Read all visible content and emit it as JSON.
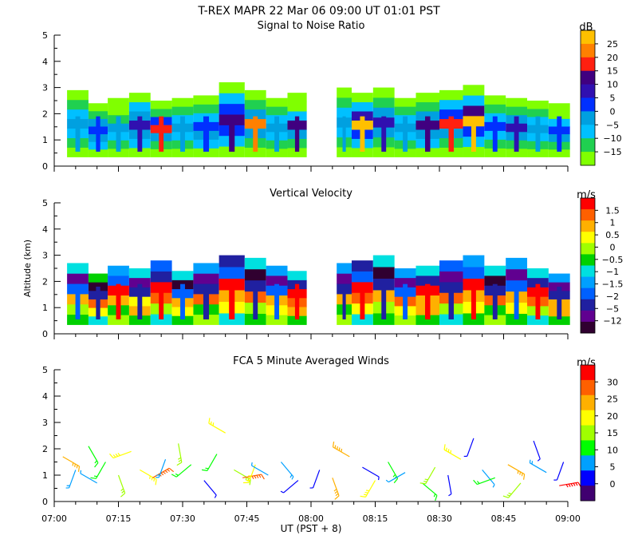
{
  "header": {
    "title": "T-REX   MAPR 22 Mar 06   09:00 UT   01:01   PST"
  },
  "colors": {
    "snr": [
      "#80ff00",
      "#20d050",
      "#00c0ff",
      "#00a0e0",
      "#0030ff",
      "#3010b0",
      "#400080",
      "#ff2010",
      "#ff8000",
      "#ffc000"
    ],
    "vel": [
      "#300030",
      "#600090",
      "#2020a0",
      "#0060ff",
      "#00a0ff",
      "#00e0e0",
      "#00d000",
      "#a0ff00",
      "#ffff00",
      "#ffb000",
      "#ff6000",
      "#ff0000"
    ],
    "wind": [
      "#400070",
      "#0000ff",
      "#00a0ff",
      "#00ff00",
      "#a0ff00",
      "#ffff00",
      "#ffb000",
      "#ff6000",
      "#ff0000"
    ]
  },
  "chart_data": [
    {
      "type": "heatmap",
      "id": "snr",
      "title": "Signal to Noise Ratio",
      "units": "dB",
      "ylabel": "",
      "ylim": [
        0,
        5
      ],
      "yticks": [
        "0",
        "1",
        "2",
        "3",
        "4",
        "5"
      ],
      "colorbar_labels": [
        "25",
        "20",
        "15",
        "10",
        "5",
        "0",
        "−5",
        "−10",
        "−15"
      ],
      "data_gap": [
        "07:59",
        "08:06"
      ],
      "profiles": [
        {
          "t": "07:06",
          "top": 2.9,
          "levels": [
            0,
            1,
            2,
            3,
            2,
            1,
            0
          ]
        },
        {
          "t": "07:10",
          "top": 2.4,
          "levels": [
            0,
            2,
            3,
            4,
            3,
            1,
            0
          ]
        },
        {
          "t": "07:15",
          "top": 2.6,
          "levels": [
            0,
            1,
            2,
            3,
            1,
            0,
            0
          ]
        },
        {
          "t": "07:20",
          "top": 2.8,
          "levels": [
            0,
            2,
            3,
            5,
            3,
            2,
            0
          ]
        },
        {
          "t": "07:25",
          "top": 2.5,
          "levels": [
            0,
            1,
            3,
            7,
            4,
            1,
            0
          ]
        },
        {
          "t": "07:30",
          "top": 2.6,
          "levels": [
            0,
            1,
            2,
            3,
            2,
            1,
            0
          ]
        },
        {
          "t": "07:35",
          "top": 2.7,
          "levels": [
            0,
            2,
            3,
            4,
            2,
            1,
            0
          ]
        },
        {
          "t": "07:42",
          "top": 3.2,
          "levels": [
            0,
            2,
            4,
            6,
            4,
            2,
            0
          ]
        },
        {
          "t": "07:47",
          "top": 2.9,
          "levels": [
            0,
            1,
            3,
            8,
            3,
            1,
            0
          ]
        },
        {
          "t": "07:52",
          "top": 2.6,
          "levels": [
            0,
            1,
            2,
            3,
            2,
            1,
            0
          ]
        },
        {
          "t": "07:57",
          "top": 2.8,
          "levels": [
            0,
            1,
            3,
            6,
            2,
            0,
            0
          ]
        },
        {
          "t": "08:07",
          "top": 3.0,
          "levels": [
            0,
            1,
            2,
            3,
            2,
            1,
            0
          ]
        },
        {
          "t": "08:12",
          "top": 2.8,
          "levels": [
            0,
            2,
            4,
            9,
            5,
            2,
            0
          ]
        },
        {
          "t": "08:17",
          "top": 3.0,
          "levels": [
            0,
            1,
            3,
            5,
            3,
            1,
            0
          ]
        },
        {
          "t": "08:22",
          "top": 2.6,
          "levels": [
            0,
            1,
            2,
            3,
            2,
            1,
            0
          ]
        },
        {
          "t": "08:27",
          "top": 2.8,
          "levels": [
            0,
            2,
            3,
            6,
            3,
            1,
            0
          ]
        },
        {
          "t": "08:33",
          "top": 2.9,
          "levels": [
            0,
            1,
            3,
            7,
            4,
            2,
            0
          ]
        },
        {
          "t": "08:38",
          "top": 3.1,
          "levels": [
            0,
            2,
            4,
            9,
            6,
            2,
            0
          ]
        },
        {
          "t": "08:43",
          "top": 2.7,
          "levels": [
            0,
            1,
            2,
            4,
            2,
            1,
            0
          ]
        },
        {
          "t": "08:48",
          "top": 2.6,
          "levels": [
            0,
            1,
            3,
            5,
            3,
            1,
            0
          ]
        },
        {
          "t": "08:53",
          "top": 2.5,
          "levels": [
            0,
            1,
            2,
            3,
            2,
            1,
            0
          ]
        },
        {
          "t": "08:58",
          "top": 2.4,
          "levels": [
            0,
            1,
            3,
            4,
            2,
            0,
            0
          ]
        }
      ]
    },
    {
      "type": "heatmap",
      "id": "velocity",
      "title": "Vertical Velocity",
      "units": "m/s",
      "ylabel": "Altitude (km)",
      "ylim": [
        0,
        5
      ],
      "yticks": [
        "0",
        "1",
        "2",
        "3",
        "4",
        "5"
      ],
      "colorbar_labels": [
        "1.5",
        "1",
        "0.5",
        "0",
        "−0.5",
        "−1",
        "−1.5",
        "−2",
        "−5",
        "−12"
      ],
      "data_gap": [
        "07:59",
        "08:06"
      ],
      "profiles": [
        {
          "t": "07:06",
          "top": 2.7,
          "levels": [
            6,
            7,
            9,
            3,
            1,
            5
          ]
        },
        {
          "t": "07:10",
          "top": 2.3,
          "levels": [
            5,
            8,
            10,
            2,
            0,
            6
          ]
        },
        {
          "t": "07:15",
          "top": 2.6,
          "levels": [
            7,
            6,
            9,
            11,
            3,
            4
          ]
        },
        {
          "t": "07:20",
          "top": 2.5,
          "levels": [
            6,
            9,
            8,
            2,
            1,
            5
          ]
        },
        {
          "t": "07:25",
          "top": 2.8,
          "levels": [
            5,
            7,
            10,
            11,
            2,
            3
          ]
        },
        {
          "t": "07:30",
          "top": 2.4,
          "levels": [
            6,
            8,
            9,
            3,
            0,
            5
          ]
        },
        {
          "t": "07:35",
          "top": 2.7,
          "levels": [
            7,
            6,
            10,
            2,
            1,
            4
          ]
        },
        {
          "t": "07:42",
          "top": 3.0,
          "levels": [
            5,
            8,
            9,
            11,
            3,
            2
          ]
        },
        {
          "t": "07:47",
          "top": 2.9,
          "levels": [
            6,
            7,
            10,
            2,
            0,
            5
          ]
        },
        {
          "t": "07:52",
          "top": 2.6,
          "levels": [
            7,
            8,
            9,
            3,
            1,
            4
          ]
        },
        {
          "t": "07:57",
          "top": 2.4,
          "levels": [
            6,
            9,
            10,
            11,
            2,
            5
          ]
        },
        {
          "t": "08:07",
          "top": 2.7,
          "levels": [
            7,
            6,
            9,
            2,
            1,
            4
          ]
        },
        {
          "t": "08:12",
          "top": 2.8,
          "levels": [
            5,
            8,
            10,
            11,
            3,
            2
          ]
        },
        {
          "t": "08:17",
          "top": 3.0,
          "levels": [
            6,
            7,
            9,
            2,
            0,
            5
          ]
        },
        {
          "t": "08:22",
          "top": 2.5,
          "levels": [
            7,
            8,
            10,
            3,
            1,
            4
          ]
        },
        {
          "t": "08:27",
          "top": 2.6,
          "levels": [
            6,
            9,
            9,
            11,
            2,
            5
          ]
        },
        {
          "t": "08:33",
          "top": 2.8,
          "levels": [
            5,
            7,
            10,
            2,
            1,
            3
          ]
        },
        {
          "t": "08:38",
          "top": 3.0,
          "levels": [
            6,
            8,
            9,
            11,
            3,
            4
          ]
        },
        {
          "t": "08:43",
          "top": 2.6,
          "levels": [
            7,
            6,
            10,
            2,
            0,
            5
          ]
        },
        {
          "t": "08:48",
          "top": 2.9,
          "levels": [
            6,
            8,
            9,
            3,
            1,
            4
          ]
        },
        {
          "t": "08:53",
          "top": 2.5,
          "levels": [
            5,
            7,
            10,
            11,
            2,
            5
          ]
        },
        {
          "t": "08:58",
          "top": 2.3,
          "levels": [
            6,
            9,
            9,
            2,
            1,
            4
          ]
        }
      ]
    },
    {
      "type": "scatter",
      "id": "winds",
      "title": "FCA 5 Minute Averaged Winds",
      "units": "m/s",
      "ylabel": "",
      "ylim": [
        0,
        5
      ],
      "yticks": [
        "0",
        "1",
        "2",
        "3",
        "4",
        "5"
      ],
      "colorbar_labels": [
        "30",
        "25",
        "20",
        "15",
        "10",
        "5",
        "0"
      ],
      "barbs": [
        {
          "t": "07:02",
          "alt": 1.7,
          "dir": 120,
          "speed": 22
        },
        {
          "t": "07:05",
          "alt": 1.2,
          "dir": 200,
          "speed": 8
        },
        {
          "t": "07:08",
          "alt": 2.1,
          "dir": 150,
          "speed": 12
        },
        {
          "t": "07:10",
          "alt": 0.7,
          "dir": 300,
          "speed": 6
        },
        {
          "t": "07:12",
          "alt": 1.5,
          "dir": 210,
          "speed": 10
        },
        {
          "t": "07:15",
          "alt": 1.0,
          "dir": 160,
          "speed": 14
        },
        {
          "t": "07:18",
          "alt": 1.9,
          "dir": 250,
          "speed": 18
        },
        {
          "t": "07:20",
          "alt": 1.2,
          "dir": 120,
          "speed": 20
        },
        {
          "t": "07:23",
          "alt": 0.9,
          "dir": 60,
          "speed": 28
        },
        {
          "t": "07:26",
          "alt": 1.6,
          "dir": 200,
          "speed": 9
        },
        {
          "t": "07:29",
          "alt": 2.2,
          "dir": 170,
          "speed": 16
        },
        {
          "t": "07:32",
          "alt": 1.4,
          "dir": 230,
          "speed": 12
        },
        {
          "t": "07:35",
          "alt": 0.8,
          "dir": 140,
          "speed": 4
        },
        {
          "t": "07:38",
          "alt": 1.8,
          "dir": 210,
          "speed": 11
        },
        {
          "t": "07:40",
          "alt": 2.6,
          "dir": 300,
          "speed": 17
        },
        {
          "t": "07:42",
          "alt": 1.2,
          "dir": 120,
          "speed": 15
        },
        {
          "t": "07:44",
          "alt": 0.9,
          "dir": 80,
          "speed": 27
        },
        {
          "t": "07:47",
          "alt": 1.4,
          "dir": 200,
          "speed": 18
        },
        {
          "t": "07:50",
          "alt": 1.0,
          "dir": 300,
          "speed": 6
        },
        {
          "t": "07:53",
          "alt": 1.5,
          "dir": 140,
          "speed": 8
        },
        {
          "t": "07:57",
          "alt": 0.8,
          "dir": 230,
          "speed": 3
        },
        {
          "t": "08:02",
          "alt": 1.2,
          "dir": 200,
          "speed": 5
        },
        {
          "t": "08:05",
          "alt": 0.9,
          "dir": 160,
          "speed": 21
        },
        {
          "t": "08:09",
          "alt": 1.7,
          "dir": 300,
          "speed": 24
        },
        {
          "t": "08:12",
          "alt": 1.3,
          "dir": 120,
          "speed": 3
        },
        {
          "t": "08:15",
          "alt": 0.8,
          "dir": 210,
          "speed": 19
        },
        {
          "t": "08:18",
          "alt": 1.5,
          "dir": 150,
          "speed": 13
        },
        {
          "t": "08:22",
          "alt": 1.1,
          "dir": 240,
          "speed": 6
        },
        {
          "t": "08:26",
          "alt": 0.7,
          "dir": 130,
          "speed": 10
        },
        {
          "t": "08:29",
          "alt": 1.3,
          "dir": 210,
          "speed": 15
        },
        {
          "t": "08:32",
          "alt": 1.0,
          "dir": 170,
          "speed": 4
        },
        {
          "t": "08:35",
          "alt": 1.6,
          "dir": 300,
          "speed": 18
        },
        {
          "t": "08:38",
          "alt": 2.4,
          "dir": 200,
          "speed": 2
        },
        {
          "t": "08:40",
          "alt": 1.2,
          "dir": 140,
          "speed": 7
        },
        {
          "t": "08:43",
          "alt": 0.9,
          "dir": 250,
          "speed": 12
        },
        {
          "t": "08:46",
          "alt": 1.4,
          "dir": 120,
          "speed": 22
        },
        {
          "t": "08:49",
          "alt": 0.7,
          "dir": 220,
          "speed": 16
        },
        {
          "t": "08:52",
          "alt": 2.3,
          "dir": 160,
          "speed": 3
        },
        {
          "t": "08:55",
          "alt": 1.1,
          "dir": 300,
          "speed": 9
        },
        {
          "t": "08:58",
          "alt": 0.6,
          "dir": 80,
          "speed": 30
        },
        {
          "t": "08:59",
          "alt": 1.5,
          "dir": 200,
          "speed": 2
        }
      ]
    }
  ],
  "xaxis": {
    "ticks": [
      "07:00",
      "07:15",
      "07:30",
      "07:45",
      "08:00",
      "08:15",
      "08:30",
      "08:45",
      "09:00"
    ],
    "label": "UT  (PST + 8)"
  }
}
